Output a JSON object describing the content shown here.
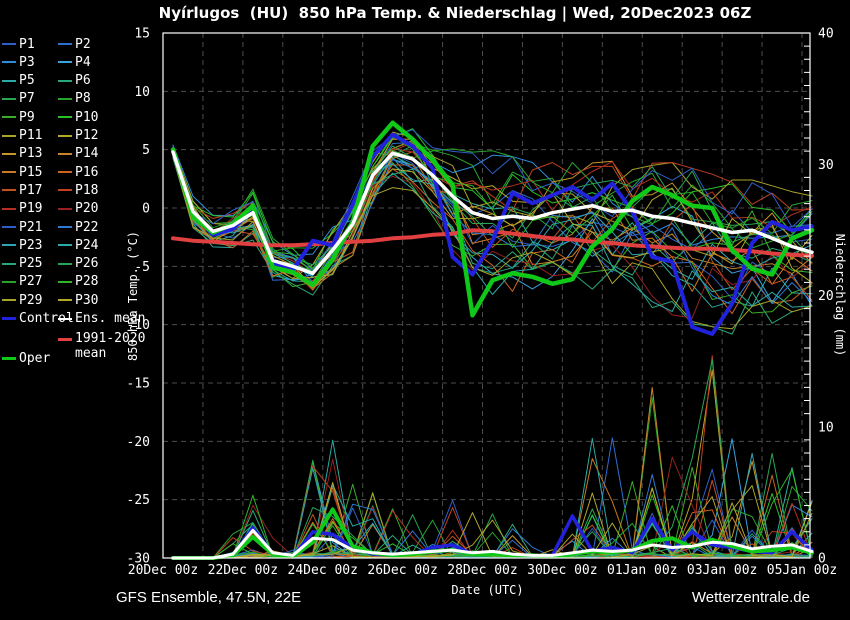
{
  "title": "Nyírlugos  (HU)  850 hPa Temp. & Niederschlag | Wed, 20Dec2023 06Z",
  "axes": {
    "temp_label": "850 hPa Temp. (°C)",
    "precip_label": "Niederschlag (mm)",
    "x_label": "Date (UTC)",
    "temp_range": [
      -30,
      15
    ],
    "precip_range": [
      0,
      40
    ],
    "temp_ticks": [
      {
        "label": "15",
        "value": 15
      },
      {
        "label": "10",
        "value": 10
      },
      {
        "label": "5",
        "value": 5
      },
      {
        "label": "0",
        "value": 0
      },
      {
        "label": "-5",
        "value": -5
      },
      {
        "label": "-10",
        "value": -10
      },
      {
        "label": "-15",
        "value": -15
      },
      {
        "label": "-20",
        "value": -20
      },
      {
        "label": "-25",
        "value": -25
      },
      {
        "label": "-30",
        "value": -30
      }
    ],
    "precip_ticks": [
      {
        "label": "40",
        "value": 40
      },
      {
        "label": "30",
        "value": 30
      },
      {
        "label": "20",
        "value": 20
      },
      {
        "label": "10",
        "value": 10
      },
      {
        "label": "0",
        "value": 0
      }
    ],
    "x_ticks": [
      {
        "label": "20Dec 00z",
        "t": 0
      },
      {
        "label": "22Dec 00z",
        "t": 2
      },
      {
        "label": "24Dec 00z",
        "t": 4
      },
      {
        "label": "26Dec 00z",
        "t": 6
      },
      {
        "label": "28Dec 00z",
        "t": 8
      },
      {
        "label": "30Dec 00z",
        "t": 10
      },
      {
        "label": "01Jan 00z",
        "t": 12
      },
      {
        "label": "03Jan 00z",
        "t": 14
      },
      {
        "label": "05Jan 00z",
        "t": 16
      }
    ],
    "grid_color": "#4d4d4d",
    "frame_color": "#ffffff"
  },
  "legend": {
    "members": [
      {
        "label": "P1",
        "color": "#2E5FC8"
      },
      {
        "label": "P2",
        "color": "#2E6FD2"
      },
      {
        "label": "P3",
        "color": "#2E8CDC"
      },
      {
        "label": "P4",
        "color": "#38A4DC"
      },
      {
        "label": "P5",
        "color": "#2AACA4"
      },
      {
        "label": "P6",
        "color": "#28A878"
      },
      {
        "label": "P7",
        "color": "#28A455"
      },
      {
        "label": "P8",
        "color": "#28A42D"
      },
      {
        "label": "P9",
        "color": "#3AAC28"
      },
      {
        "label": "P10",
        "color": "#28C028"
      },
      {
        "label": "P11",
        "color": "#A8A428"
      },
      {
        "label": "P12",
        "color": "#B4A828"
      },
      {
        "label": "P13",
        "color": "#C89628"
      },
      {
        "label": "P14",
        "color": "#C88428"
      },
      {
        "label": "P15",
        "color": "#CC7820"
      },
      {
        "label": "P16",
        "color": "#CC6420"
      },
      {
        "label": "P17",
        "color": "#C45020"
      },
      {
        "label": "P18",
        "color": "#C04020"
      },
      {
        "label": "P19",
        "color": "#B43020"
      },
      {
        "label": "P20",
        "color": "#982020"
      },
      {
        "label": "P21",
        "color": "#2E5FC8"
      },
      {
        "label": "P22",
        "color": "#2E7AD2"
      },
      {
        "label": "P23",
        "color": "#30A4B4"
      },
      {
        "label": "P24",
        "color": "#2AACA4"
      },
      {
        "label": "P25",
        "color": "#28A878"
      },
      {
        "label": "P26",
        "color": "#28A455"
      },
      {
        "label": "P27",
        "color": "#28A42D"
      },
      {
        "label": "P28",
        "color": "#30B428"
      },
      {
        "label": "P29",
        "color": "#A8A428"
      },
      {
        "label": "P30",
        "color": "#B4A828"
      }
    ],
    "control": {
      "label": "Control",
      "color": "#2222DD"
    },
    "ens_mean": {
      "label": "Ens. mean",
      "color": "#FFFFFF"
    },
    "clim": {
      "label_line1": "1991-2020",
      "label_line2": "mean",
      "color": "#E04040"
    },
    "oper": {
      "label": "Oper",
      "color": "#10C818"
    }
  },
  "footer": {
    "left": "GFS Ensemble, 47.5N, 22E",
    "right": "Wetterzentrale.de"
  },
  "chart_data": {
    "type": "line",
    "title": "Nyírlugos (HU) 850 hPa Temp. & Niederschlag | Wed, 20Dec2023 06Z",
    "xlabel": "Date (UTC)",
    "ylabel_left": "850 hPa Temp. (°C)",
    "ylabel_right": "Niederschlag (mm)",
    "ylim_temp": [
      -30,
      15
    ],
    "ylim_precip": [
      0,
      40
    ],
    "x_days_range": [
      0,
      16.2
    ],
    "grid": "dashed, every 1 day vertical, every 5 °C horizontal",
    "legend_position": "left",
    "time_days": [
      0.25,
      0.75,
      1.25,
      1.75,
      2.25,
      2.75,
      3.25,
      3.75,
      4.25,
      4.75,
      5.25,
      5.75,
      6.25,
      6.75,
      7.25,
      7.75,
      8.25,
      8.75,
      9.25,
      9.75,
      10.25,
      10.75,
      11.25,
      11.75,
      12.25,
      12.75,
      13.25,
      13.75,
      14.25,
      14.75,
      15.25,
      15.75,
      16.25
    ],
    "series": [
      {
        "id": "ens_mean",
        "name": "Ens. mean",
        "color": "#FFFFFF",
        "width": 3.5,
        "temp": [
          4.8,
          -0.3,
          -2,
          -1.5,
          -0.4,
          -4.5,
          -5,
          -5.6,
          -3.6,
          -1.4,
          2.8,
          4.7,
          4.2,
          2.8,
          1,
          -0.4,
          -0.9,
          -0.7,
          -0.9,
          -0.4,
          -0.1,
          0.2,
          -0.3,
          -0.2,
          -0.7,
          -0.9,
          -1.3,
          -1.7,
          -2.1,
          -1.9,
          -2.6,
          -3.3,
          -3.8
        ],
        "precip": [
          0,
          0,
          0,
          0.3,
          2.1,
          0.4,
          0.2,
          1.5,
          1.4,
          0.6,
          0.4,
          0.3,
          0.4,
          0.5,
          0.6,
          0.4,
          0.5,
          0.3,
          0.2,
          0.2,
          0.4,
          0.6,
          0.5,
          0.6,
          1,
          0.8,
          0.9,
          1.2,
          1.1,
          0.7,
          0.9,
          1,
          0.5
        ]
      },
      {
        "id": "control",
        "name": "Control",
        "color": "#2222DD",
        "width": 4,
        "temp": [
          4.9,
          -0.5,
          -2.3,
          -1.8,
          -0.1,
          -4.8,
          -5.3,
          -2.8,
          -3.2,
          0.3,
          4.4,
          6.3,
          5.3,
          3.4,
          -4.2,
          -5.7,
          -2.8,
          1.3,
          0.4,
          1.1,
          1.8,
          0.7,
          2.1,
          -0.3,
          -4.2,
          -4.6,
          -10.2,
          -10.8,
          -8.2,
          -3,
          -1.2,
          -1.9,
          -1.6
        ],
        "precip": [
          0,
          0,
          0,
          0.2,
          2.3,
          0.3,
          0.1,
          2,
          1.8,
          0.8,
          0.3,
          0.2,
          0.3,
          0.8,
          1,
          0.3,
          0.4,
          0.2,
          0.1,
          0.2,
          3.2,
          0.5,
          0.8,
          0.4,
          3,
          0.6,
          2,
          1,
          0.8,
          0.5,
          0.4,
          2,
          0.6
        ]
      },
      {
        "id": "oper",
        "name": "Oper",
        "color": "#10C818",
        "width": 4.5,
        "temp": [
          5,
          -0.7,
          -2.1,
          -1.4,
          0.2,
          -5.1,
          -5.5,
          -6.6,
          -4.4,
          -1.2,
          5.3,
          7.3,
          5.9,
          4.1,
          2,
          -9.2,
          -6.2,
          -5.6,
          -5.9,
          -6.5,
          -6.1,
          -3.3,
          -1.8,
          0.6,
          1.8,
          1.1,
          0.2,
          0,
          -3.6,
          -5.2,
          -5.7,
          -2.6,
          -1.9
        ],
        "precip": [
          0,
          0,
          0,
          0.2,
          1.6,
          0.3,
          0.1,
          1.2,
          3.7,
          0.9,
          0.4,
          0.2,
          0.3,
          0.5,
          0.6,
          0.3,
          0.3,
          0.2,
          0.2,
          0.1,
          0.3,
          0.5,
          0.4,
          0.6,
          1.3,
          1.5,
          0.8,
          1.4,
          0.9,
          0.5,
          0.6,
          0.8,
          0.4
        ]
      },
      {
        "id": "clim",
        "name": "1991-2020 mean",
        "color": "#E04040",
        "width": 4,
        "temp": [
          -2.6,
          -2.8,
          -2.9,
          -3,
          -3.1,
          -3.2,
          -3.2,
          -3.1,
          -3,
          -2.9,
          -2.8,
          -2.6,
          -2.5,
          -2.3,
          -2.2,
          -1.9,
          -2,
          -2.2,
          -2.4,
          -2.6,
          -2.7,
          -2.9,
          -3,
          -3.2,
          -3.3,
          -3.4,
          -3.5,
          -3.5,
          -3.6,
          -3.7,
          -3.9,
          -4,
          -4.1
        ],
        "precip": null
      }
    ],
    "ensemble": {
      "count": 30,
      "seed": 77,
      "note": "30 perturbation members P1-P30 drawn as thin spaghetti lines; readable data is the envelope below, member wiggle is procedurally generated from these parameters",
      "temp_envelope_upper": [
        5.5,
        1,
        -1,
        -0.5,
        1.8,
        -3,
        -3.5,
        -3,
        -1,
        1,
        5,
        8,
        7.5,
        7,
        6.5,
        5,
        4.5,
        4,
        3.5,
        3.5,
        3.5,
        4,
        4,
        4.5,
        4,
        3.5,
        3,
        2.5,
        2,
        2,
        1.5,
        1,
        1
      ],
      "temp_envelope_lower": [
        4.2,
        -2,
        -3.5,
        -3,
        -2.5,
        -6,
        -7,
        -8,
        -6.5,
        -4,
        0,
        2,
        1,
        -2,
        -5,
        -10.5,
        -10,
        -9,
        -8.5,
        -8.5,
        -8,
        -7.5,
        -8,
        -9,
        -8.5,
        -10,
        -11.5,
        -13,
        -12.5,
        -10,
        -9.5,
        -8.5,
        -8
      ],
      "spread": [
        0.5,
        0.7,
        0.8,
        1,
        1.3,
        1,
        1,
        1.2,
        1.4,
        1.6,
        1.8,
        1.6,
        1.6,
        2,
        2.6,
        3.2,
        3.6,
        3.9,
        4,
        4,
        4,
        4,
        4.1,
        4.1,
        4.2,
        4.3,
        4.4,
        4.6,
        4.6,
        4.4,
        4.2,
        4,
        3.9
      ],
      "wiggle_amp": [
        0.2,
        0.5,
        0.5,
        0.6,
        0.8,
        0.7,
        0.6,
        0.7,
        0.8,
        0.9,
        1,
        0.9,
        0.9,
        1,
        1.2,
        1.4,
        1.5,
        1.6,
        1.6,
        1.6,
        1.6,
        1.6,
        1.7,
        1.7,
        1.7,
        1.8,
        1.8,
        1.9,
        1.9,
        1.8,
        1.7,
        1.7,
        1.6
      ],
      "precip_activity": [
        0,
        0,
        0,
        0.3,
        0.9,
        0.4,
        0.3,
        0.8,
        0.9,
        0.6,
        0.5,
        0.4,
        0.4,
        0.5,
        0.5,
        0.4,
        0.4,
        0.3,
        0.2,
        0.2,
        0.3,
        0.5,
        0.5,
        0.5,
        0.6,
        0.5,
        0.6,
        0.7,
        0.6,
        0.5,
        0.5,
        0.5,
        0.4
      ],
      "precip_max": [
        0,
        0,
        0,
        2,
        5,
        2,
        1,
        8,
        9,
        6,
        5,
        4,
        5,
        5,
        5,
        4,
        4,
        3,
        2,
        2,
        4,
        10,
        10,
        8,
        14,
        8,
        9,
        16,
        10,
        8,
        9,
        7,
        5
      ]
    }
  }
}
